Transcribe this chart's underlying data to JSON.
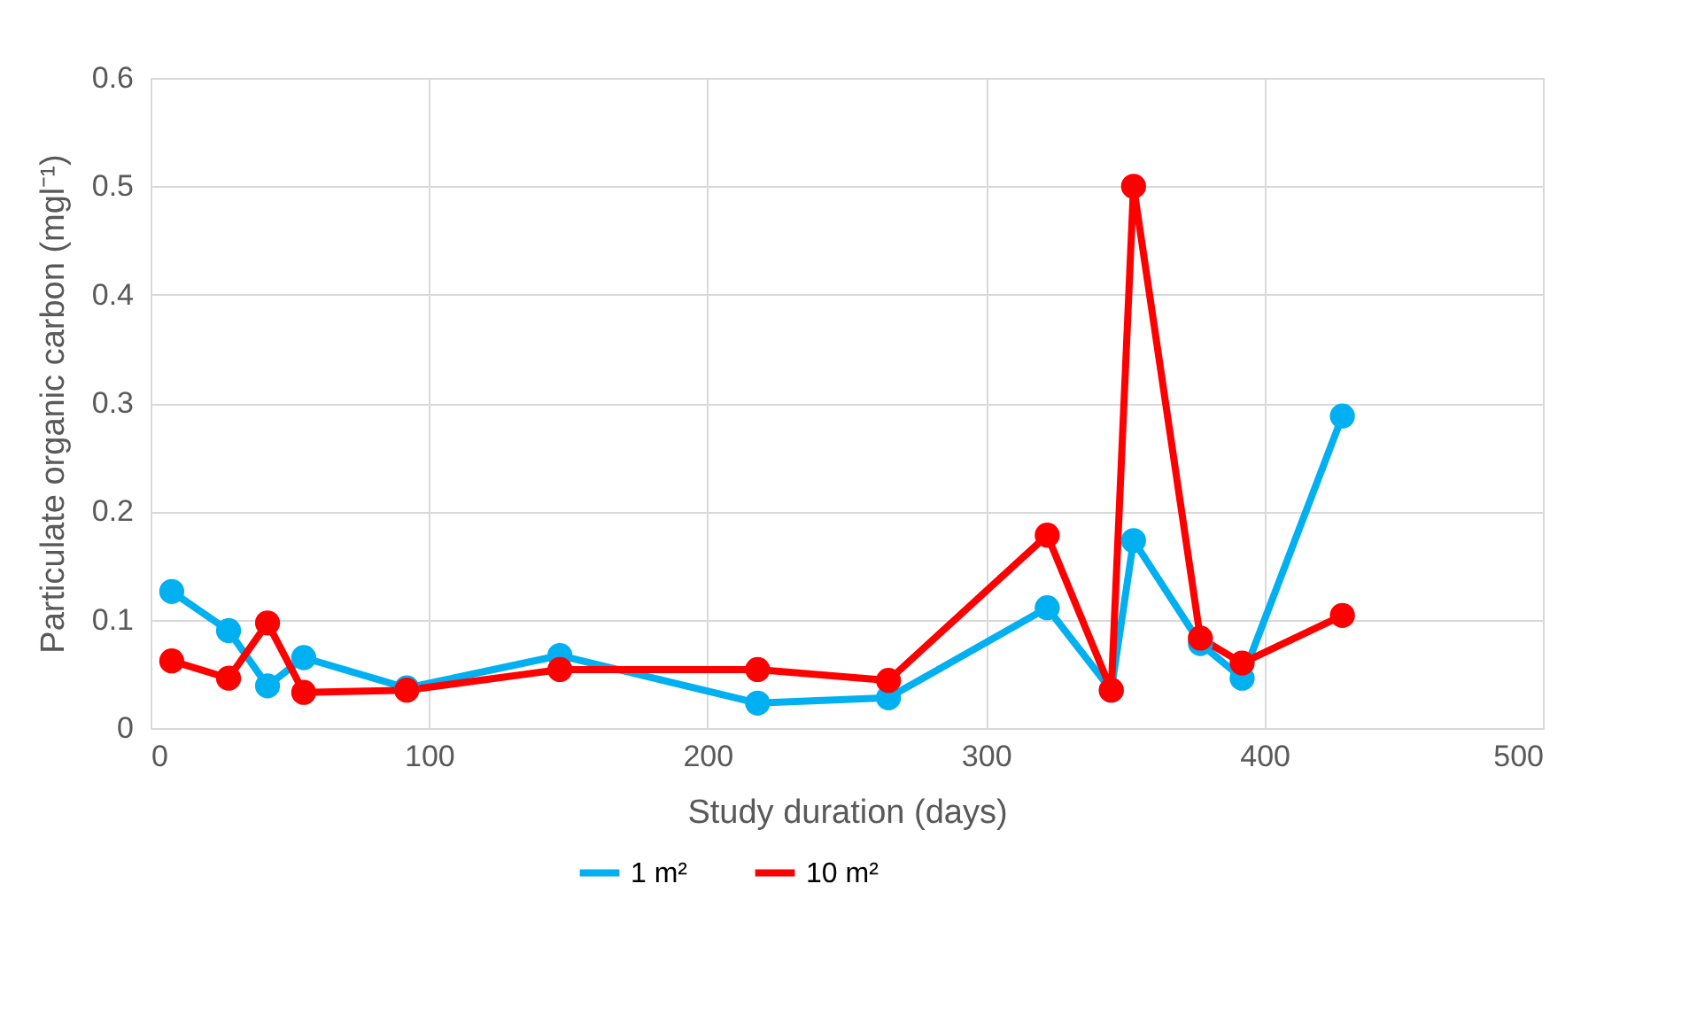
{
  "chart_data": {
    "type": "line",
    "xlabel": "Study duration (days)",
    "ylabel": "Particulate organic carbon (mgl⁻¹)",
    "x": [
      7.6,
      28,
      42,
      55,
      92,
      147,
      218,
      265,
      322,
      345,
      353,
      377,
      392,
      428
    ],
    "series": [
      {
        "name": "1 m²",
        "color": "#00b0f0",
        "values": [
          0.126,
          0.09,
          0.039,
          0.065,
          0.037,
          0.067,
          0.023,
          0.028,
          0.111,
          0.035,
          0.173,
          0.078,
          0.046,
          0.288
        ]
      },
      {
        "name": "10 m²",
        "color": "#ff0000",
        "values": [
          0.062,
          0.046,
          0.097,
          0.033,
          0.035,
          0.054,
          0.054,
          0.044,
          0.178,
          0.035,
          0.5,
          0.083,
          0.06,
          0.104
        ]
      }
    ],
    "xlim": [
      0,
      500
    ],
    "xticks": [
      0,
      100,
      200,
      300,
      400,
      500
    ],
    "ylim": [
      0,
      0.6
    ],
    "yticks": [
      0,
      0.1,
      0.2,
      0.3,
      0.4,
      0.5,
      0.6
    ],
    "grid": true,
    "legend": "bottom",
    "marker": "circle",
    "line_style": "solid"
  }
}
